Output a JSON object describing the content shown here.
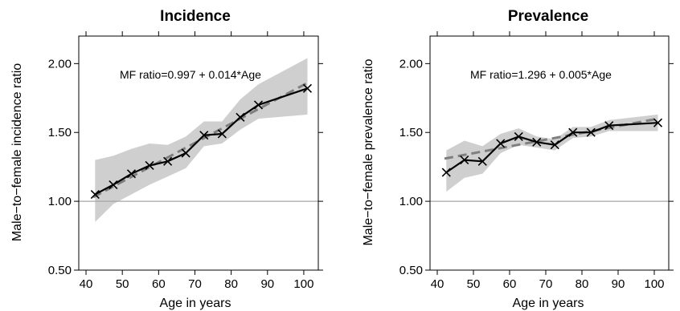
{
  "chart_data": [
    {
      "type": "line",
      "title": "Incidence",
      "xlabel": "Age in years",
      "ylabel": "Male−to−female incidence ratio",
      "xlim": [
        38,
        104
      ],
      "ylim": [
        0.5,
        2.2
      ],
      "xticks": [
        40,
        50,
        60,
        70,
        80,
        90,
        100
      ],
      "yticks": [
        0.5,
        1.0,
        1.5,
        2.0
      ],
      "xtick_labels": [
        "40",
        "50",
        "60",
        "70",
        "80",
        "90",
        "100"
      ],
      "ytick_labels": [
        "0.50",
        "1.00",
        "1.50",
        "2.00"
      ],
      "reference_line": 1.0,
      "annotation": "MF ratio=0.997 + 0.014*Age",
      "x": [
        42.5,
        47.5,
        52.5,
        57.5,
        62.5,
        67.5,
        72.5,
        77.5,
        82.5,
        87.5,
        101
      ],
      "y": [
        1.05,
        1.12,
        1.2,
        1.26,
        1.29,
        1.35,
        1.48,
        1.49,
        1.61,
        1.7,
        1.82
      ],
      "ci_lower": [
        0.85,
        0.98,
        1.05,
        1.12,
        1.18,
        1.24,
        1.4,
        1.42,
        1.52,
        1.6,
        1.63
      ],
      "ci_upper": [
        1.3,
        1.33,
        1.38,
        1.42,
        1.41,
        1.47,
        1.58,
        1.58,
        1.74,
        1.85,
        2.04
      ],
      "fit_x": [
        42,
        101
      ],
      "fit_y": [
        1.03,
        1.86
      ]
    },
    {
      "type": "line",
      "title": "Prevalence",
      "xlabel": "Age in years",
      "ylabel": "Male−to−female prevalence ratio",
      "xlim": [
        38,
        104
      ],
      "ylim": [
        0.5,
        2.2
      ],
      "xticks": [
        40,
        50,
        60,
        70,
        80,
        90,
        100
      ],
      "yticks": [
        0.5,
        1.0,
        1.5,
        2.0
      ],
      "xtick_labels": [
        "40",
        "50",
        "60",
        "70",
        "80",
        "90",
        "100"
      ],
      "ytick_labels": [
        "0.50",
        "1.00",
        "1.50",
        "2.00"
      ],
      "reference_line": 1.0,
      "annotation": "MF ratio=1.296 + 0.005*Age",
      "x": [
        42.5,
        47.5,
        52.5,
        57.5,
        62.5,
        67.5,
        72.5,
        77.5,
        82.5,
        87.5,
        101
      ],
      "y": [
        1.21,
        1.3,
        1.29,
        1.42,
        1.47,
        1.43,
        1.41,
        1.5,
        1.5,
        1.55,
        1.57
      ],
      "ci_lower": [
        1.07,
        1.17,
        1.2,
        1.35,
        1.41,
        1.39,
        1.37,
        1.46,
        1.47,
        1.51,
        1.51
      ],
      "ci_upper": [
        1.37,
        1.44,
        1.4,
        1.49,
        1.53,
        1.47,
        1.45,
        1.54,
        1.54,
        1.59,
        1.63
      ],
      "fit_x": [
        42,
        101
      ],
      "fit_y": [
        1.31,
        1.6
      ]
    }
  ],
  "colors": {
    "ci_band": "#cfcfcf",
    "data_line": "#000000",
    "fit_line": "#7f7f7f",
    "reference_line": "#a6a6a6",
    "axis": "#000000"
  }
}
